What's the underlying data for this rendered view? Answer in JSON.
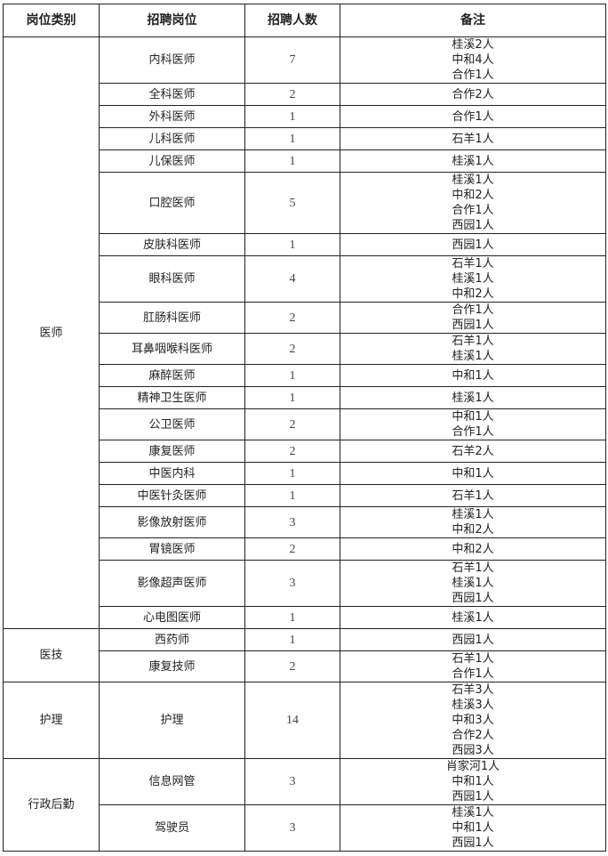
{
  "header": {
    "category": "岗位类别",
    "position": "招聘岗位",
    "count": "招聘人数",
    "notes": "备注"
  },
  "groups": [
    {
      "category": "医师",
      "positions": [
        {
          "name": "内科医师",
          "count": "7",
          "notes": [
            "桂溪2人",
            "中和4人",
            "合作1人"
          ]
        },
        {
          "name": "全科医师",
          "count": "2",
          "notes": [
            "合作2人"
          ]
        },
        {
          "name": "外科医师",
          "count": "1",
          "notes": [
            "合作1人"
          ]
        },
        {
          "name": "儿科医师",
          "count": "1",
          "notes": [
            "石羊1人"
          ]
        },
        {
          "name": "儿保医师",
          "count": "1",
          "notes": [
            "桂溪1人"
          ]
        },
        {
          "name": "口腔医师",
          "count": "5",
          "notes": [
            "桂溪1人",
            "中和2人",
            "合作1人",
            "西园1人"
          ]
        },
        {
          "name": "皮肤科医师",
          "count": "1",
          "notes": [
            "西园1人"
          ]
        },
        {
          "name": "眼科医师",
          "count": "4",
          "notes": [
            "石羊1人",
            "桂溪1人",
            "中和2人"
          ]
        },
        {
          "name": "肛肠科医师",
          "count": "2",
          "notes": [
            "合作1人",
            "西园1人"
          ]
        },
        {
          "name": "耳鼻咽喉科医师",
          "count": "2",
          "notes": [
            "石羊1人",
            "桂溪1人"
          ]
        },
        {
          "name": "麻醉医师",
          "count": "1",
          "notes": [
            "中和1人"
          ]
        },
        {
          "name": "精神卫生医师",
          "count": "1",
          "notes": [
            "桂溪1人"
          ]
        },
        {
          "name": "公卫医师",
          "count": "2",
          "notes": [
            "中和1人",
            "合作1人"
          ]
        },
        {
          "name": "康复医师",
          "count": "2",
          "notes": [
            "石羊2人"
          ]
        },
        {
          "name": "中医内科",
          "count": "1",
          "notes": [
            "中和1人"
          ]
        },
        {
          "name": "中医针灸医师",
          "count": "1",
          "notes": [
            "石羊1人"
          ]
        },
        {
          "name": "影像放射医师",
          "count": "3",
          "notes": [
            "桂溪1人",
            "中和2人"
          ]
        },
        {
          "name": "胃镜医师",
          "count": "2",
          "notes": [
            "中和2人"
          ]
        },
        {
          "name": "影像超声医师",
          "count": "3",
          "notes": [
            "石羊1人",
            "桂溪1人",
            "西园1人"
          ]
        },
        {
          "name": "心电图医师",
          "count": "1",
          "notes": [
            "桂溪1人"
          ]
        }
      ]
    },
    {
      "category": "医技",
      "positions": [
        {
          "name": "西药师",
          "count": "1",
          "notes": [
            "西园1人"
          ]
        },
        {
          "name": "康复技师",
          "count": "2",
          "notes": [
            "石羊1人",
            "合作1人"
          ]
        }
      ]
    },
    {
      "category": "护理",
      "positions": [
        {
          "name": "护理",
          "count": "14",
          "notes": [
            "石羊3人",
            "桂溪3人",
            "中和3人",
            "合作2人",
            "西园3人"
          ]
        }
      ]
    },
    {
      "category": "行政后勤",
      "positions": [
        {
          "name": "信息网管",
          "count": "3",
          "notes": [
            "肖家河1人",
            "中和1人",
            "西园1人"
          ]
        },
        {
          "name": "驾驶员",
          "count": "3",
          "notes": [
            "桂溪1人",
            "中和1人",
            "西园1人"
          ]
        }
      ]
    }
  ]
}
